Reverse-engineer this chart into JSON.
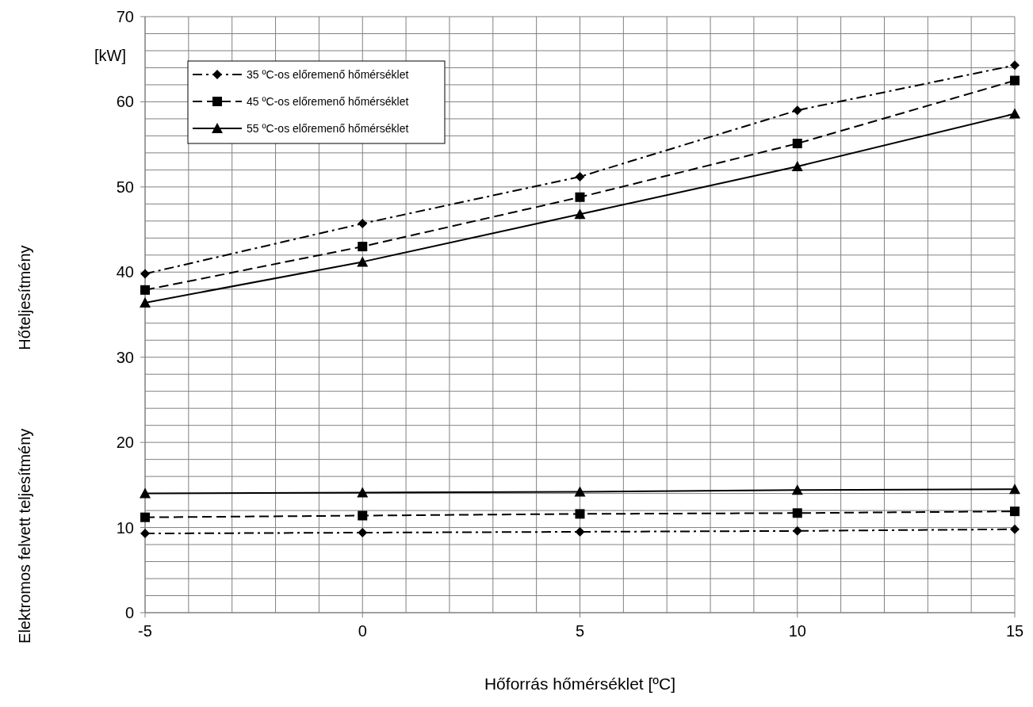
{
  "chart_data": {
    "type": "line",
    "xlabel": "Hőforrás hőmérséklet [ºC]",
    "annotations": [
      "[kW]",
      "Elektromos felvett teljesítmény",
      "Hőteljesítmény"
    ],
    "x": [
      -5,
      0,
      5,
      10,
      15
    ],
    "xlim": [
      -5,
      15
    ],
    "xticks": [
      -5,
      {
        "value": -4,
        "label": null
      },
      {
        "value": -3,
        "label": null
      },
      {
        "value": -2,
        "label": null
      },
      {
        "value": -1,
        "label": null
      },
      0,
      {
        "value": 1,
        "label": null
      },
      {
        "value": 2,
        "label": null
      },
      {
        "value": 3,
        "label": null
      },
      {
        "value": 4,
        "label": null
      },
      5,
      {
        "value": 6,
        "label": null
      },
      {
        "value": 7,
        "label": null
      },
      {
        "value": 8,
        "label": null
      },
      {
        "value": 9,
        "label": null
      },
      10,
      {
        "value": 11,
        "label": null
      },
      {
        "value": 12,
        "label": null
      },
      {
        "value": 13,
        "label": null
      },
      {
        "value": 14,
        "label": null
      },
      15
    ],
    "ylim": [
      0,
      70
    ],
    "yticks": [
      0,
      {
        "value": 2,
        "label": null
      },
      {
        "value": 4,
        "label": null
      },
      {
        "value": 6,
        "label": null
      },
      {
        "value": 8,
        "label": null
      },
      10,
      {
        "value": 12,
        "label": null
      },
      {
        "value": 14,
        "label": null
      },
      {
        "value": 16,
        "label": null
      },
      {
        "value": 18,
        "label": null
      },
      20,
      {
        "value": 22,
        "label": null
      },
      {
        "value": 24,
        "label": null
      },
      {
        "value": 26,
        "label": null
      },
      {
        "value": 28,
        "label": null
      },
      30,
      {
        "value": 32,
        "label": null
      },
      {
        "value": 34,
        "label": null
      },
      {
        "value": 36,
        "label": null
      },
      {
        "value": 38,
        "label": null
      },
      40,
      {
        "value": 42,
        "label": null
      },
      {
        "value": 44,
        "label": null
      },
      {
        "value": 46,
        "label": null
      },
      {
        "value": 48,
        "label": null
      },
      50,
      {
        "value": 52,
        "label": null
      },
      {
        "value": 54,
        "label": null
      },
      {
        "value": 56,
        "label": null
      },
      {
        "value": 58,
        "label": null
      },
      60,
      {
        "value": 62,
        "label": null
      },
      {
        "value": 64,
        "label": null
      },
      {
        "value": 66,
        "label": null
      },
      {
        "value": 68,
        "label": null
      },
      70
    ],
    "grid": true,
    "legend": "top left",
    "series": [
      {
        "name": "35 ºC-os előremenő hőmérséklet",
        "color": "#000000",
        "marker": "diamond",
        "line_style": "dashdot",
        "values": [
          39.8,
          45.7,
          51.2,
          59.0,
          64.3
        ]
      },
      {
        "name": "45 ºC-os előremenő hőmérséklet",
        "color": "#000000",
        "marker": "square",
        "line_style": "dashed",
        "values": [
          37.9,
          43.0,
          48.8,
          55.1,
          62.5
        ]
      },
      {
        "name": "55 ºC-os előremenő hőmérséklet",
        "color": "#000000",
        "marker": "triangle",
        "line_style": "solid",
        "values": [
          36.4,
          41.2,
          46.8,
          52.4,
          58.6
        ]
      },
      {
        "color": "#000000",
        "marker": "triangle",
        "line_style": "solid",
        "values": [
          14.0,
          14.1,
          14.2,
          14.4,
          14.5
        ]
      },
      {
        "color": "#000000",
        "marker": "square",
        "line_style": "dashed",
        "values": [
          11.2,
          11.4,
          11.6,
          11.7,
          11.9
        ]
      },
      {
        "color": "#000000",
        "marker": "diamond",
        "line_style": "dashdot",
        "values": [
          9.3,
          9.4,
          9.5,
          9.6,
          9.8
        ]
      }
    ]
  }
}
